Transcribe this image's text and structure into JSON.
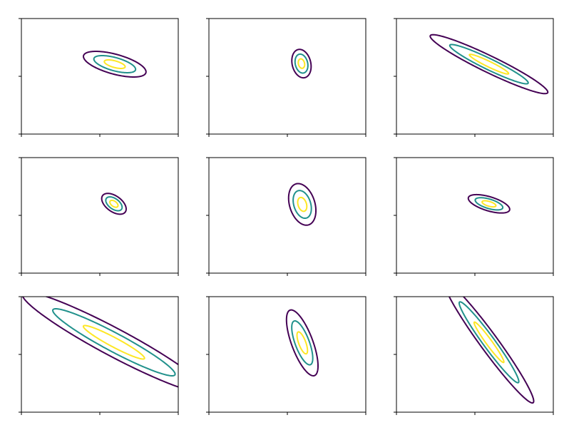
{
  "chart_data": [
    {
      "type": "contour",
      "center": [
        0.19,
        0.21
      ],
      "sx": 0.133,
      "sy": 0.074,
      "rho": -0.6,
      "levels": [
        3,
        2,
        1
      ],
      "colors": [
        "#440154",
        "#21918c",
        "#fde725"
      ],
      "xlim": [
        -1,
        1
      ],
      "ylim": [
        -1,
        1
      ],
      "xticks": [
        -1,
        0,
        1
      ],
      "yticks": [
        -1,
        0,
        1
      ]
    },
    {
      "type": "contour",
      "center": [
        0.18,
        0.22
      ],
      "sx": 0.041,
      "sy": 0.082,
      "rho": -0.2,
      "levels": [
        3,
        2,
        1
      ],
      "colors": [
        "#440154",
        "#21918c",
        "#fde725"
      ],
      "xlim": [
        -1,
        1
      ],
      "ylim": [
        -1,
        1
      ],
      "xticks": [
        -1,
        0,
        1
      ],
      "yticks": [
        -1,
        0,
        1
      ]
    },
    {
      "type": "contour",
      "center": [
        0.18,
        0.21
      ],
      "sx": 0.25,
      "sy": 0.17,
      "rho": -0.95,
      "levels": [
        3,
        2,
        1
      ],
      "colors": [
        "#440154",
        "#21918c",
        "#fde725"
      ],
      "xlim": [
        -1,
        1
      ],
      "ylim": [
        -1,
        1
      ],
      "xticks": [
        -1,
        0,
        1
      ],
      "yticks": [
        -1,
        0,
        1
      ]
    },
    {
      "type": "contour",
      "center": [
        0.18,
        0.2
      ],
      "sx": 0.052,
      "sy": 0.06,
      "rho": -0.5,
      "levels": [
        3,
        2,
        1
      ],
      "colors": [
        "#440154",
        "#21918c",
        "#fde725"
      ],
      "xlim": [
        -1,
        1
      ],
      "ylim": [
        -1,
        1
      ],
      "xticks": [
        -1,
        0,
        1
      ],
      "yticks": [
        -1,
        0,
        1
      ]
    },
    {
      "type": "contour",
      "center": [
        0.19,
        0.19
      ],
      "sx": 0.058,
      "sy": 0.12,
      "rho": -0.3,
      "levels": [
        3,
        2,
        1
      ],
      "colors": [
        "#440154",
        "#21918c",
        "#fde725"
      ],
      "xlim": [
        -1,
        1
      ],
      "ylim": [
        -1,
        1
      ],
      "xticks": [
        -1,
        0,
        1
      ],
      "yticks": [
        -1,
        0,
        1
      ]
    },
    {
      "type": "contour",
      "center": [
        0.18,
        0.2
      ],
      "sx": 0.088,
      "sy": 0.053,
      "rho": -0.6,
      "levels": [
        3,
        2,
        1
      ],
      "colors": [
        "#440154",
        "#21918c",
        "#fde725"
      ],
      "xlim": [
        -1,
        1
      ],
      "ylim": [
        -1,
        1
      ],
      "xticks": [
        -1,
        0,
        1
      ],
      "yticks": [
        -1,
        0,
        1
      ]
    },
    {
      "type": "contour",
      "center": [
        0.18,
        0.21
      ],
      "sx": 0.39,
      "sy": 0.29,
      "rho": -0.95,
      "levels": [
        3,
        2,
        1
      ],
      "colors": [
        "#440154",
        "#21918c",
        "#fde725"
      ],
      "xlim": [
        -1,
        1
      ],
      "ylim": [
        -1,
        1
      ],
      "xticks": [
        -1,
        0,
        1
      ],
      "yticks": [
        -1,
        0,
        1
      ]
    },
    {
      "type": "contour",
      "center": [
        0.19,
        0.2
      ],
      "sx": 0.067,
      "sy": 0.19,
      "rho": -0.7,
      "levels": [
        3,
        2,
        1
      ],
      "colors": [
        "#440154",
        "#21918c",
        "#fde725"
      ],
      "xlim": [
        -1,
        1
      ],
      "ylim": [
        -1,
        1
      ],
      "xticks": [
        -1,
        0,
        1
      ],
      "yticks": [
        -1,
        0,
        1
      ]
    },
    {
      "type": "contour",
      "center": [
        0.18,
        0.21
      ],
      "sx": 0.19,
      "sy": 0.35,
      "rho": -0.97,
      "levels": [
        3,
        2,
        1
      ],
      "colors": [
        "#440154",
        "#21918c",
        "#fde725"
      ],
      "xlim": [
        -1,
        1
      ],
      "ylim": [
        -1,
        1
      ],
      "xticks": [
        -1,
        0,
        1
      ],
      "yticks": [
        -1,
        0,
        1
      ]
    }
  ]
}
